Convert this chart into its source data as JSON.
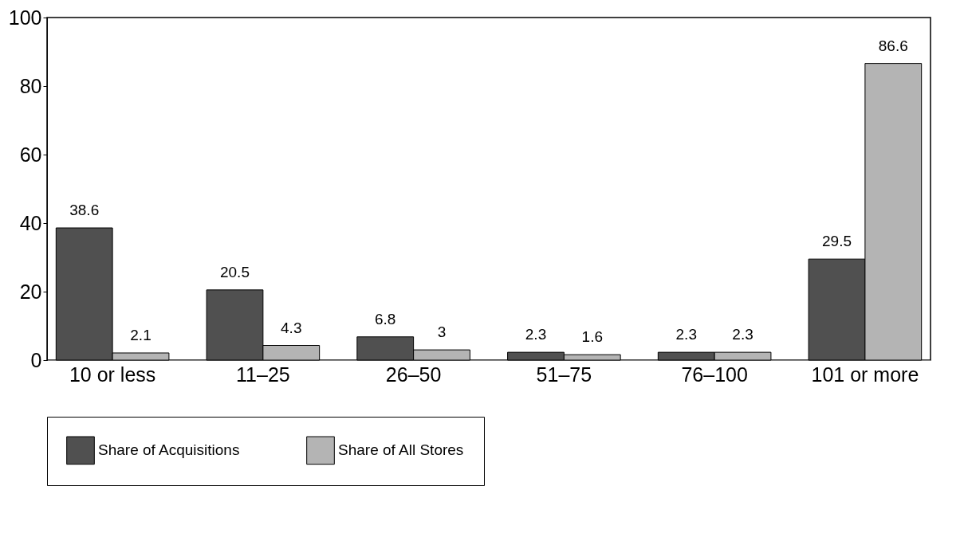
{
  "chart_data": {
    "type": "bar",
    "categories": [
      "10 or less",
      "11–25",
      "26–50",
      "51–75",
      "76–100",
      "101 or more"
    ],
    "series": [
      {
        "name": "Share of Acquisitions",
        "color": "#505050",
        "values": [
          38.6,
          20.5,
          6.8,
          2.3,
          2.3,
          29.5
        ]
      },
      {
        "name": "Share of All Stores",
        "color": "#b4b4b4",
        "values": [
          2.1,
          4.3,
          3,
          1.6,
          2.3,
          86.6
        ]
      }
    ],
    "ylim": [
      0,
      100
    ],
    "yticks": [
      0,
      20,
      40,
      60,
      80,
      100
    ],
    "grid": false,
    "legend": "bottom",
    "data_labels": true
  }
}
